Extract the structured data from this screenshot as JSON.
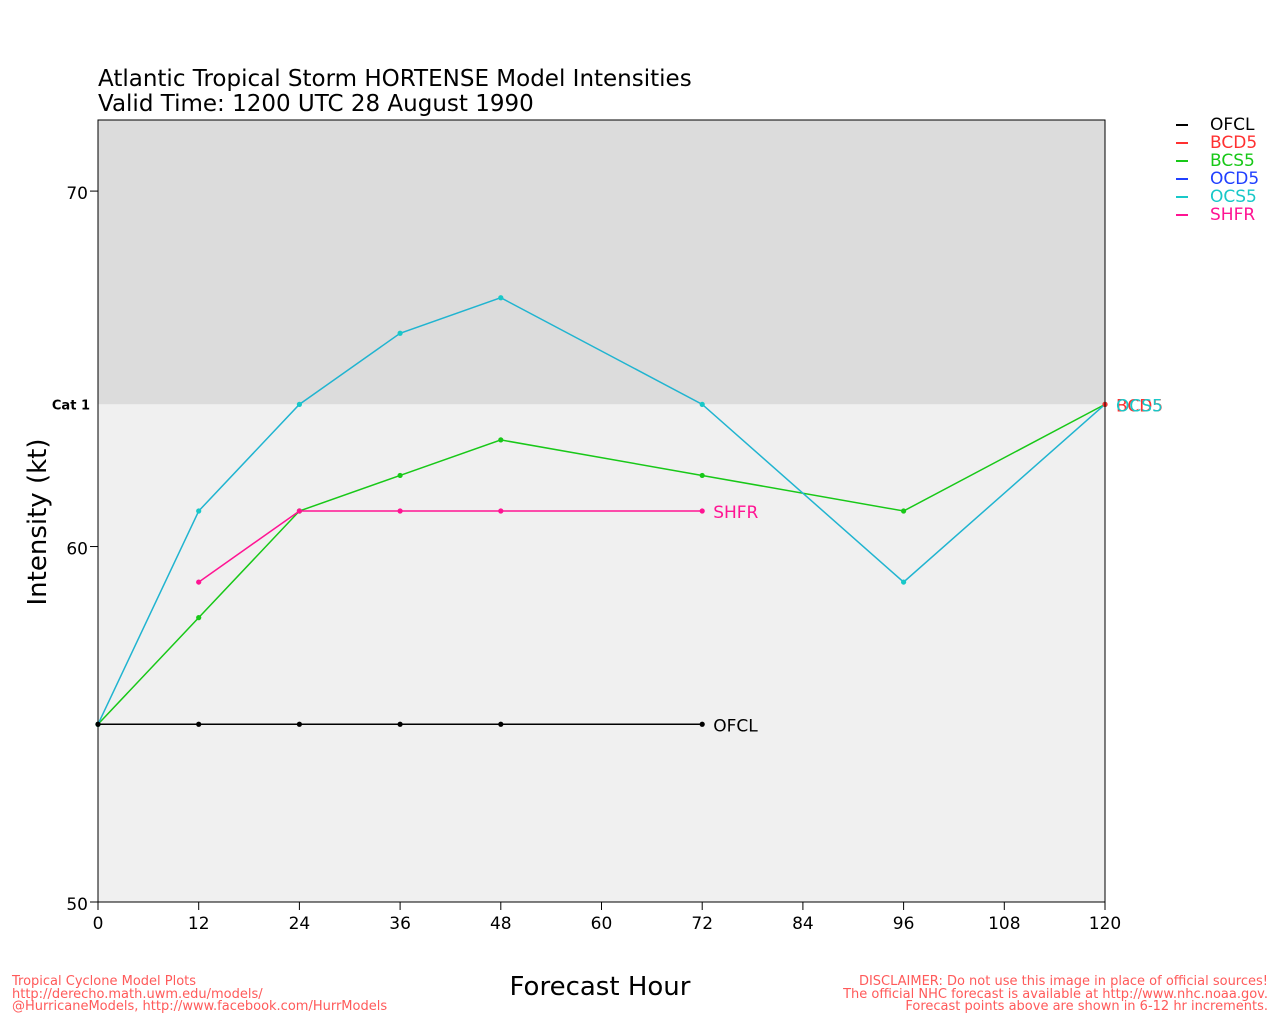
{
  "title_line1": "Atlantic Tropical Storm HORTENSE Model Intensities",
  "title_line2": "Valid Time: 1200 UTC 28 August 1990",
  "footer_left": [
    "Tropical Cyclone Model Plots",
    "http://derecho.math.uwm.edu/models/",
    "@HurricaneModels, http://www.facebook.com/HurrModels"
  ],
  "footer_right": [
    "DISCLAIMER: Do not use this image in place of official sources!",
    "The official NHC forecast is available at http://www.nhc.noaa.gov.",
    "Forecast points above are shown in 6-12 hr increments."
  ],
  "chart_data": {
    "type": "line",
    "xlabel": "Forecast Hour",
    "ylabel": "Intensity (kt)",
    "xlim": [
      0,
      120
    ],
    "ylim": [
      50,
      72
    ],
    "xticks": [
      0,
      12,
      24,
      36,
      48,
      60,
      72,
      84,
      96,
      108,
      120
    ],
    "yticks": [
      50,
      60,
      70
    ],
    "threshold": {
      "label": "Cat 1",
      "value": 64
    },
    "legend_position": "right, outside top",
    "series": [
      {
        "name": "OFCL",
        "color": "#000000",
        "x": [
          0,
          12,
          24,
          36,
          48,
          72
        ],
        "y": [
          55,
          55,
          55,
          55,
          55,
          55
        ],
        "end_label": "OFCL"
      },
      {
        "name": "BCD5",
        "color": "#ff3030",
        "x": [
          120
        ],
        "y": [
          64
        ],
        "end_label": "BCD5"
      },
      {
        "name": "BCS5",
        "color": "#18c818",
        "x": [
          0,
          12,
          24,
          36,
          48,
          72,
          96,
          120
        ],
        "y": [
          55,
          58,
          61,
          62,
          63,
          62,
          61,
          64
        ],
        "end_label": ""
      },
      {
        "name": "OCD5",
        "color": "#2040ff",
        "x": [],
        "y": [],
        "end_label": ""
      },
      {
        "name": "OCS5",
        "color": "#18c8c8",
        "x": [
          0,
          12,
          24,
          36,
          48,
          72,
          96,
          120
        ],
        "y": [
          55,
          61,
          64,
          66,
          67,
          64,
          59,
          64
        ],
        "end_label": "OCS5"
      },
      {
        "name": "SHFR",
        "color": "#ff1493",
        "x": [
          12,
          24,
          36,
          48,
          72
        ],
        "y": [
          59,
          61,
          61,
          61,
          61
        ],
        "end_label": "SHFR"
      }
    ]
  }
}
